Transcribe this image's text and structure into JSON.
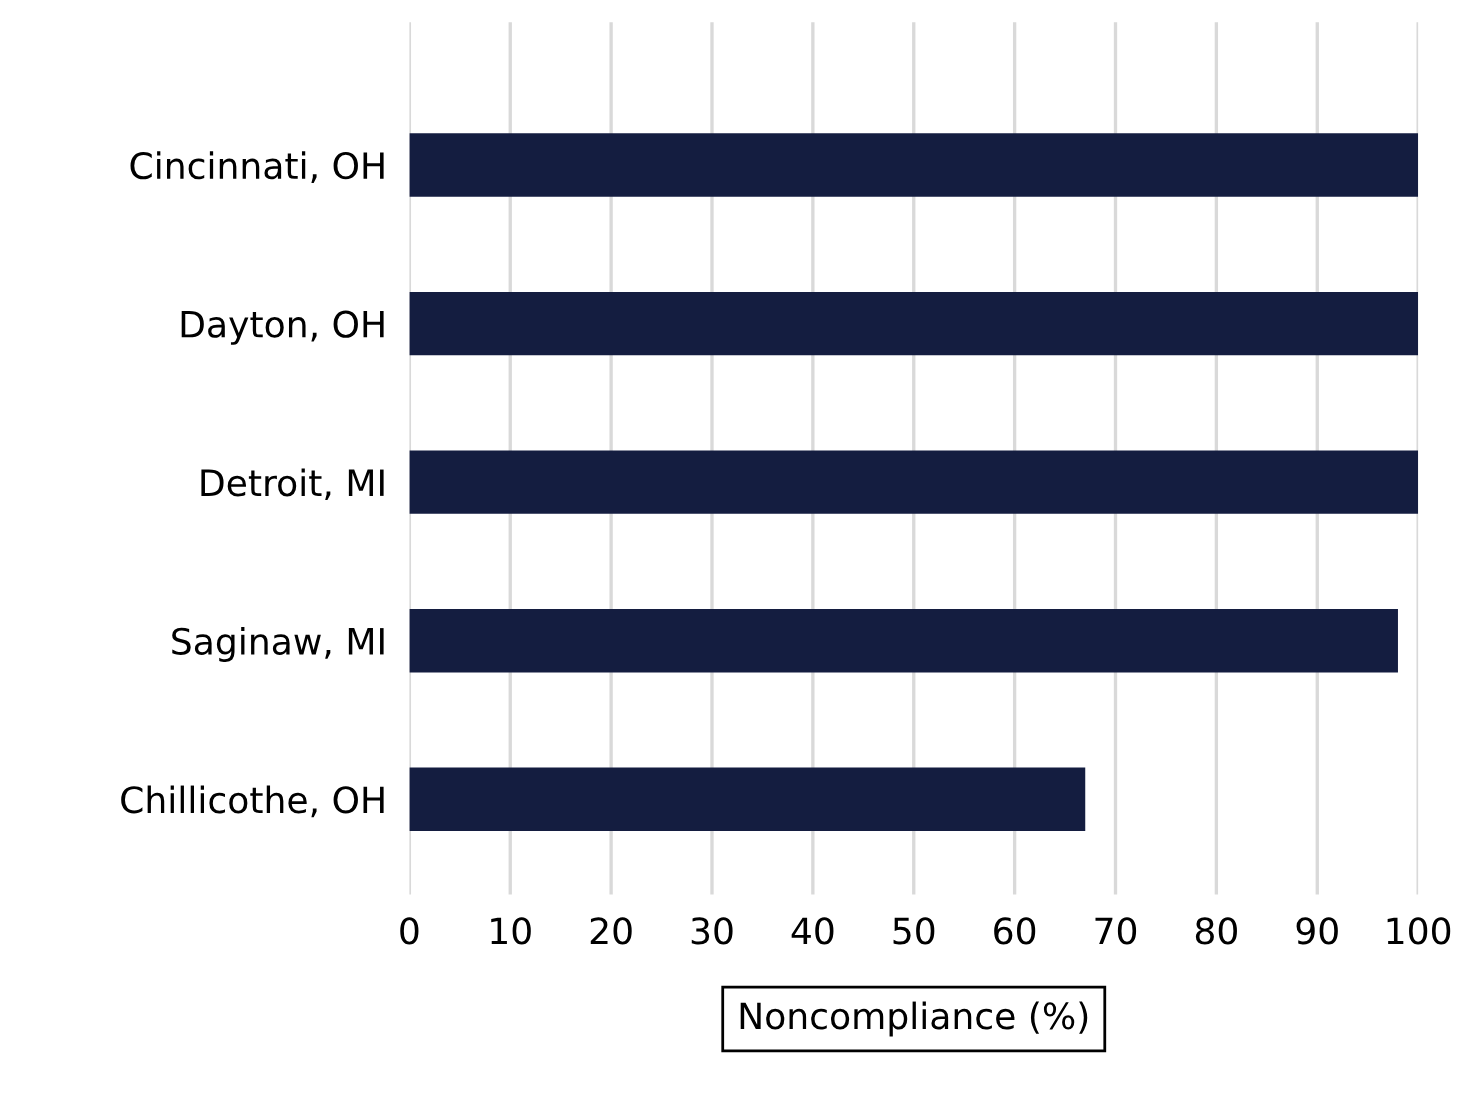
{
  "chart_data": {
    "type": "bar",
    "orientation": "horizontal",
    "xlabel": "Noncompliance (%)",
    "categories": [
      "Cincinnati, OH",
      "Dayton, OH",
      "Detroit, MI",
      "Saginaw, MI",
      "Chillicothe, OH"
    ],
    "values": [
      100,
      100,
      100,
      98,
      67
    ],
    "color": "#141d40",
    "xlim": [
      0,
      100
    ],
    "xticks": [
      0,
      10,
      20,
      30,
      40,
      50,
      60,
      70,
      80,
      90,
      100
    ],
    "grid": "x"
  }
}
